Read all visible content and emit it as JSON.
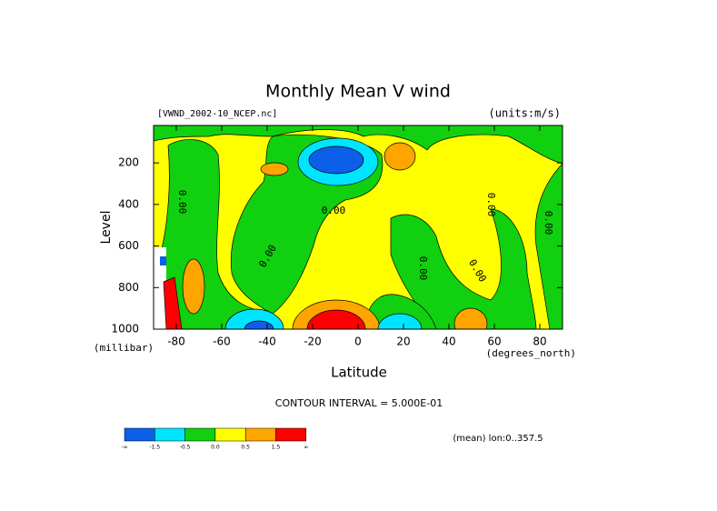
{
  "chart_data": {
    "type": "contour",
    "title": "Monthly Mean V wind",
    "dataset_label": "[VWND_2002-10_NCEP.nc]",
    "units_label": "(units:m/s)",
    "x_label": "Latitude",
    "x_unit_label": "(degrees_north)",
    "y_label": "Level",
    "y_unit_label": "(millibar)",
    "xlim": [
      -90,
      90
    ],
    "xticks": [
      -80,
      -60,
      -40,
      -20,
      0,
      20,
      40,
      60,
      80
    ],
    "ylim": [
      1000,
      20
    ],
    "yticks": [
      200,
      400,
      600,
      800,
      1000
    ],
    "contour_label": "0.00",
    "contour_interval_text": "CONTOUR INTERVAL = 5.000E-01",
    "footer_text": "(mean) lon:0..357.5",
    "colorbar": {
      "colors": [
        "#0b5fe8",
        "#00e5ff",
        "#10d010",
        "#ffff00",
        "#ffa500",
        "#ff0000"
      ],
      "boundaries": [
        "-∞",
        -1.5,
        -0.5,
        {
          "value": 0,
          "label": "0.0"
        },
        0.5,
        1.5,
        "∞"
      ]
    }
  }
}
